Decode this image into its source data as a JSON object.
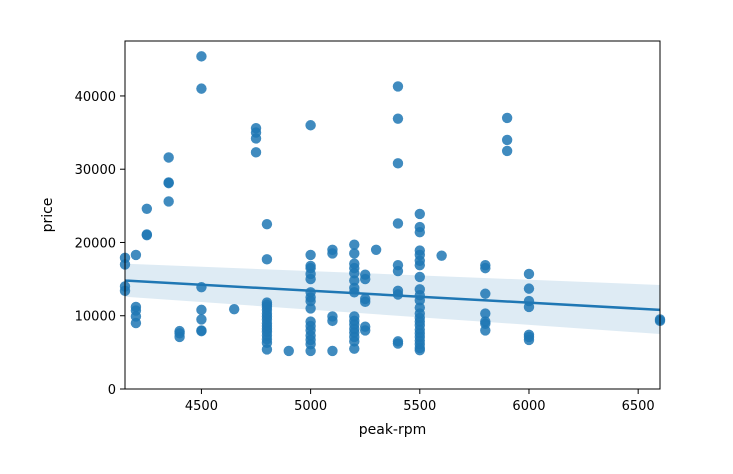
{
  "chart_data": {
    "type": "scatter",
    "title": "",
    "xlabel": "peak-rpm",
    "ylabel": "price",
    "xlim": [
      4150,
      6600
    ],
    "ylim": [
      0,
      47500
    ],
    "xticks": [
      4500,
      5000,
      5500,
      6000,
      6500
    ],
    "yticks": [
      0,
      10000,
      20000,
      30000,
      40000
    ],
    "xtick_labels": [
      "4500",
      "5000",
      "5500",
      "6000",
      "6500"
    ],
    "ytick_labels": [
      "0",
      "10000",
      "20000",
      "30000",
      "40000"
    ],
    "grid": false,
    "colors": {
      "points": "#1f77b4",
      "line": "#1f77b4",
      "band": "#1f77b4"
    },
    "regression": {
      "x": [
        4150,
        6600
      ],
      "y": [
        14800,
        10800
      ],
      "ci_lower": [
        12600,
        7500
      ],
      "ci_upper": [
        17100,
        14200
      ]
    },
    "points": [
      {
        "x": 4150,
        "y": 17900
      },
      {
        "x": 4150,
        "y": 17000
      },
      {
        "x": 4150,
        "y": 14000
      },
      {
        "x": 4150,
        "y": 13400
      },
      {
        "x": 4200,
        "y": 18300
      },
      {
        "x": 4200,
        "y": 11200
      },
      {
        "x": 4200,
        "y": 10700
      },
      {
        "x": 4200,
        "y": 9900
      },
      {
        "x": 4200,
        "y": 9000
      },
      {
        "x": 4250,
        "y": 24600
      },
      {
        "x": 4250,
        "y": 21100
      },
      {
        "x": 4250,
        "y": 21000
      },
      {
        "x": 4350,
        "y": 31600
      },
      {
        "x": 4350,
        "y": 28200
      },
      {
        "x": 4350,
        "y": 28100
      },
      {
        "x": 4350,
        "y": 25600
      },
      {
        "x": 4400,
        "y": 7900
      },
      {
        "x": 4400,
        "y": 7600
      },
      {
        "x": 4400,
        "y": 7100
      },
      {
        "x": 4500,
        "y": 45400
      },
      {
        "x": 4500,
        "y": 41000
      },
      {
        "x": 4500,
        "y": 13900
      },
      {
        "x": 4500,
        "y": 10800
      },
      {
        "x": 4500,
        "y": 9500
      },
      {
        "x": 4500,
        "y": 8000
      },
      {
        "x": 4500,
        "y": 7900
      },
      {
        "x": 4650,
        "y": 10900
      },
      {
        "x": 4750,
        "y": 35600
      },
      {
        "x": 4750,
        "y": 35000
      },
      {
        "x": 4750,
        "y": 34200
      },
      {
        "x": 4750,
        "y": 32300
      },
      {
        "x": 4800,
        "y": 22500
      },
      {
        "x": 4800,
        "y": 17700
      },
      {
        "x": 4800,
        "y": 11800
      },
      {
        "x": 4800,
        "y": 11500
      },
      {
        "x": 4800,
        "y": 11200
      },
      {
        "x": 4800,
        "y": 10800
      },
      {
        "x": 4800,
        "y": 10300
      },
      {
        "x": 4800,
        "y": 9900
      },
      {
        "x": 4800,
        "y": 9500
      },
      {
        "x": 4800,
        "y": 9000
      },
      {
        "x": 4800,
        "y": 8600
      },
      {
        "x": 4800,
        "y": 8200
      },
      {
        "x": 4800,
        "y": 7800
      },
      {
        "x": 4800,
        "y": 7300
      },
      {
        "x": 4800,
        "y": 6800
      },
      {
        "x": 4800,
        "y": 6300
      },
      {
        "x": 4800,
        "y": 5400
      },
      {
        "x": 4900,
        "y": 5200
      },
      {
        "x": 5000,
        "y": 36000
      },
      {
        "x": 5000,
        "y": 18300
      },
      {
        "x": 5000,
        "y": 16800
      },
      {
        "x": 5000,
        "y": 16500
      },
      {
        "x": 5000,
        "y": 15700
      },
      {
        "x": 5000,
        "y": 15000
      },
      {
        "x": 5000,
        "y": 13200
      },
      {
        "x": 5000,
        "y": 12500
      },
      {
        "x": 5000,
        "y": 12000
      },
      {
        "x": 5000,
        "y": 11000
      },
      {
        "x": 5000,
        "y": 9200
      },
      {
        "x": 5000,
        "y": 8600
      },
      {
        "x": 5000,
        "y": 8000
      },
      {
        "x": 5000,
        "y": 7300
      },
      {
        "x": 5000,
        "y": 6700
      },
      {
        "x": 5000,
        "y": 6100
      },
      {
        "x": 5000,
        "y": 5200
      },
      {
        "x": 5100,
        "y": 19000
      },
      {
        "x": 5100,
        "y": 18500
      },
      {
        "x": 5100,
        "y": 9900
      },
      {
        "x": 5100,
        "y": 9300
      },
      {
        "x": 5100,
        "y": 5200
      },
      {
        "x": 5200,
        "y": 19700
      },
      {
        "x": 5200,
        "y": 18500
      },
      {
        "x": 5200,
        "y": 17100
      },
      {
        "x": 5200,
        "y": 16500
      },
      {
        "x": 5200,
        "y": 15800
      },
      {
        "x": 5200,
        "y": 14800
      },
      {
        "x": 5200,
        "y": 13800
      },
      {
        "x": 5200,
        "y": 13200
      },
      {
        "x": 5200,
        "y": 9900
      },
      {
        "x": 5200,
        "y": 9300
      },
      {
        "x": 5200,
        "y": 8800
      },
      {
        "x": 5200,
        "y": 8200
      },
      {
        "x": 5200,
        "y": 7700
      },
      {
        "x": 5200,
        "y": 7100
      },
      {
        "x": 5200,
        "y": 6500
      },
      {
        "x": 5200,
        "y": 5500
      },
      {
        "x": 5250,
        "y": 15600
      },
      {
        "x": 5250,
        "y": 15000
      },
      {
        "x": 5250,
        "y": 12300
      },
      {
        "x": 5250,
        "y": 11900
      },
      {
        "x": 5250,
        "y": 8500
      },
      {
        "x": 5250,
        "y": 8000
      },
      {
        "x": 5300,
        "y": 19000
      },
      {
        "x": 5400,
        "y": 41300
      },
      {
        "x": 5400,
        "y": 36900
      },
      {
        "x": 5400,
        "y": 30800
      },
      {
        "x": 5400,
        "y": 22600
      },
      {
        "x": 5400,
        "y": 16900
      },
      {
        "x": 5400,
        "y": 16100
      },
      {
        "x": 5400,
        "y": 13400
      },
      {
        "x": 5400,
        "y": 12900
      },
      {
        "x": 5400,
        "y": 6500
      },
      {
        "x": 5400,
        "y": 6200
      },
      {
        "x": 5500,
        "y": 23900
      },
      {
        "x": 5500,
        "y": 22100
      },
      {
        "x": 5500,
        "y": 21400
      },
      {
        "x": 5500,
        "y": 18900
      },
      {
        "x": 5500,
        "y": 18300
      },
      {
        "x": 5500,
        "y": 17500
      },
      {
        "x": 5500,
        "y": 16900
      },
      {
        "x": 5500,
        "y": 15300
      },
      {
        "x": 5500,
        "y": 13600
      },
      {
        "x": 5500,
        "y": 12800
      },
      {
        "x": 5500,
        "y": 12100
      },
      {
        "x": 5500,
        "y": 11100
      },
      {
        "x": 5500,
        "y": 10300
      },
      {
        "x": 5500,
        "y": 9700
      },
      {
        "x": 5500,
        "y": 9200
      },
      {
        "x": 5500,
        "y": 8700
      },
      {
        "x": 5500,
        "y": 8100
      },
      {
        "x": 5500,
        "y": 7600
      },
      {
        "x": 5500,
        "y": 7100
      },
      {
        "x": 5500,
        "y": 6600
      },
      {
        "x": 5500,
        "y": 6100
      },
      {
        "x": 5500,
        "y": 5600
      },
      {
        "x": 5500,
        "y": 5300
      },
      {
        "x": 5600,
        "y": 18200
      },
      {
        "x": 5800,
        "y": 16900
      },
      {
        "x": 5800,
        "y": 16500
      },
      {
        "x": 5800,
        "y": 13000
      },
      {
        "x": 5800,
        "y": 10300
      },
      {
        "x": 5800,
        "y": 9200
      },
      {
        "x": 5800,
        "y": 8900
      },
      {
        "x": 5800,
        "y": 8000
      },
      {
        "x": 5900,
        "y": 37000
      },
      {
        "x": 5900,
        "y": 34000
      },
      {
        "x": 5900,
        "y": 32500
      },
      {
        "x": 6000,
        "y": 15700
      },
      {
        "x": 6000,
        "y": 13700
      },
      {
        "x": 6000,
        "y": 12000
      },
      {
        "x": 6000,
        "y": 11200
      },
      {
        "x": 6000,
        "y": 7400
      },
      {
        "x": 6000,
        "y": 7100
      },
      {
        "x": 6000,
        "y": 6700
      },
      {
        "x": 6600,
        "y": 9500
      },
      {
        "x": 6600,
        "y": 9300
      }
    ]
  }
}
